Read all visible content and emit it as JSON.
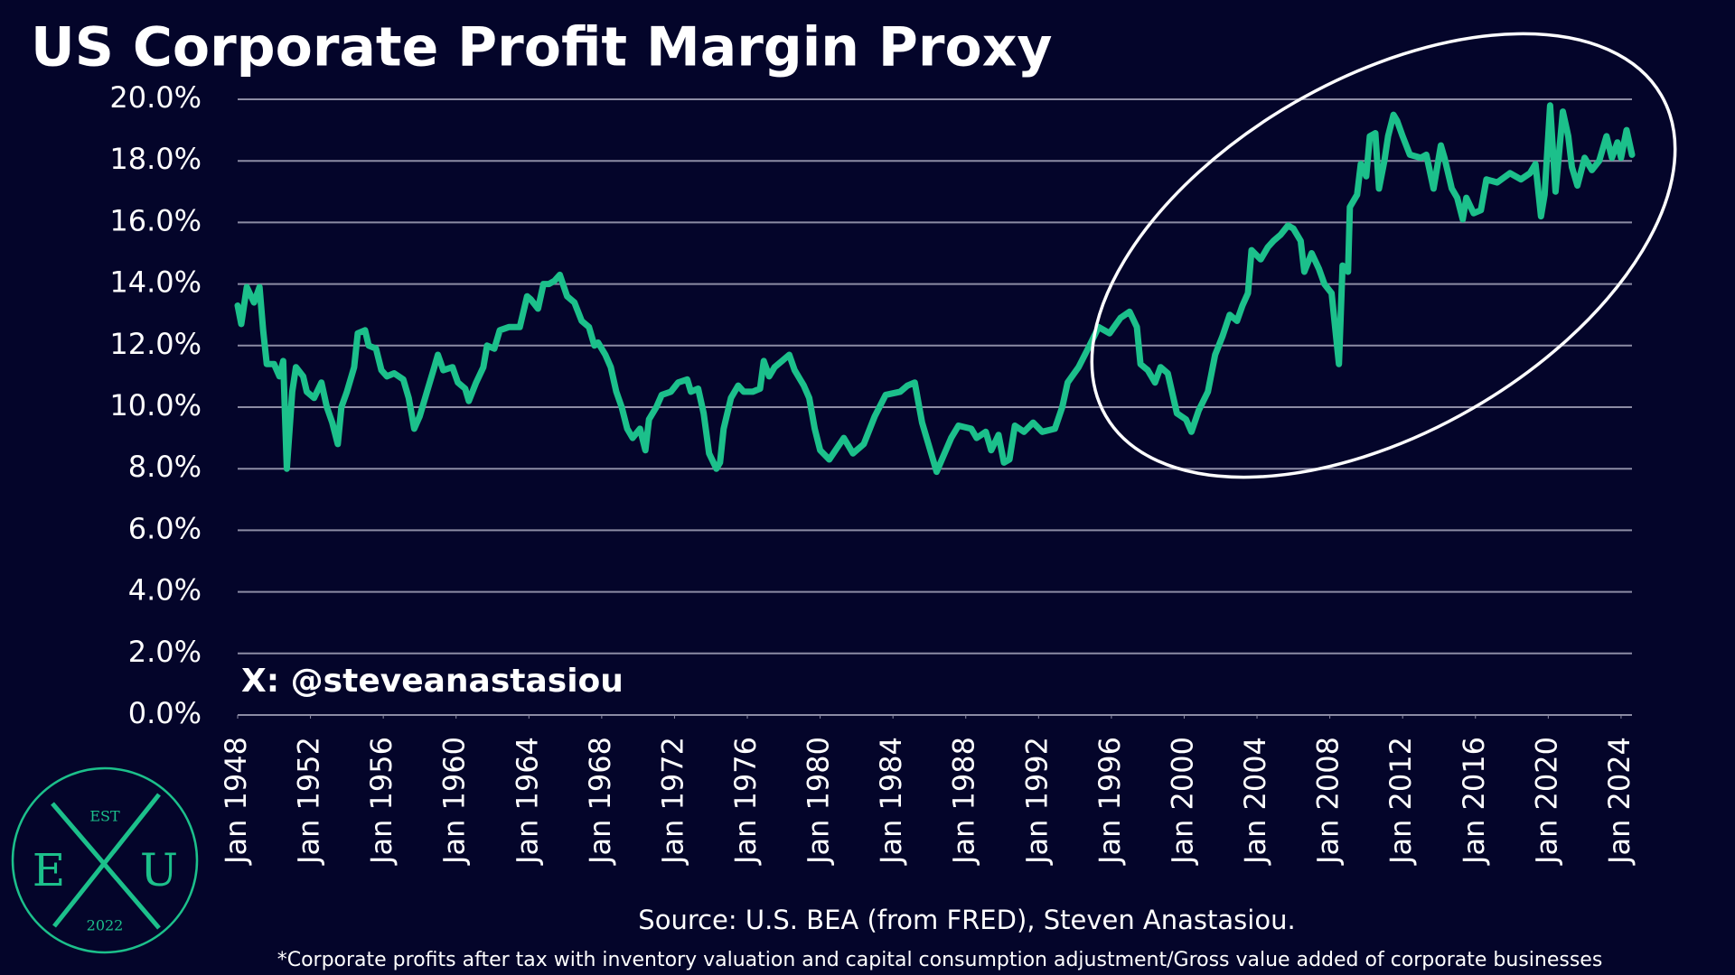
{
  "chart_data": {
    "type": "line",
    "title": "US Corporate Profit Margin Proxy",
    "watermark": "X: @steveanastasiou",
    "source": "Source: U.S. BEA (from FRED), Steven Anastasiou.",
    "footnote": "*Corporate profits after tax with inventory valuation and capital consumption adjustment/Gross value added of corporate businesses",
    "logo": {
      "top": "EST",
      "left": "E",
      "right": "U",
      "bottom": "2022"
    },
    "xlim": [
      1948,
      2024.6
    ],
    "ylim": [
      0,
      20
    ],
    "grid": true,
    "xticks": [
      {
        "value": 1948,
        "label": "Jan 1948"
      },
      {
        "value": 1952,
        "label": "Jan 1952"
      },
      {
        "value": 1956,
        "label": "Jan 1956"
      },
      {
        "value": 1960,
        "label": "Jan 1960"
      },
      {
        "value": 1964,
        "label": "Jan 1964"
      },
      {
        "value": 1968,
        "label": "Jan 1968"
      },
      {
        "value": 1972,
        "label": "Jan 1972"
      },
      {
        "value": 1976,
        "label": "Jan 1976"
      },
      {
        "value": 1980,
        "label": "Jan 1980"
      },
      {
        "value": 1984,
        "label": "Jan 1984"
      },
      {
        "value": 1988,
        "label": "Jan 1988"
      },
      {
        "value": 1992,
        "label": "Jan 1992"
      },
      {
        "value": 1996,
        "label": "Jan 1996"
      },
      {
        "value": 2000,
        "label": "Jan 2000"
      },
      {
        "value": 2004,
        "label": "Jan 2004"
      },
      {
        "value": 2008,
        "label": "Jan 2008"
      },
      {
        "value": 2012,
        "label": "Jan 2012"
      },
      {
        "value": 2016,
        "label": "Jan 2016"
      },
      {
        "value": 2020,
        "label": "Jan 2020"
      },
      {
        "value": 2024,
        "label": "Jan 2024"
      }
    ],
    "yticks": [
      {
        "value": 0,
        "label": "0.0%"
      },
      {
        "value": 2,
        "label": "2.0%"
      },
      {
        "value": 4,
        "label": "4.0%"
      },
      {
        "value": 6,
        "label": "6.0%"
      },
      {
        "value": 8,
        "label": "8.0%"
      },
      {
        "value": 10,
        "label": "10.0%"
      },
      {
        "value": 12,
        "label": "12.0%"
      },
      {
        "value": 14,
        "label": "14.0%"
      },
      {
        "value": 16,
        "label": "16.0%"
      },
      {
        "value": 18,
        "label": "18.0%"
      },
      {
        "value": 20,
        "label": "20.0%"
      }
    ],
    "series": [
      {
        "color": "#1cc08b",
        "x": [
          1948.0,
          1948.2,
          1948.5,
          1948.9,
          1949.2,
          1949.4,
          1949.6,
          1950.0,
          1950.3,
          1950.5,
          1950.7,
          1951.0,
          1951.2,
          1951.6,
          1951.8,
          1952.2,
          1952.6,
          1952.9,
          1953.2,
          1953.5,
          1953.7,
          1954.0,
          1954.4,
          1954.6,
          1955.0,
          1955.2,
          1955.6,
          1955.9,
          1956.2,
          1956.6,
          1957.1,
          1957.4,
          1957.7,
          1958.0,
          1958.4,
          1958.8,
          1959.0,
          1959.3,
          1959.8,
          1960.1,
          1960.5,
          1960.7,
          1961.1,
          1961.5,
          1961.7,
          1962.1,
          1962.4,
          1962.9,
          1963.5,
          1963.9,
          1964.1,
          1964.5,
          1964.8,
          1965.1,
          1965.4,
          1965.7,
          1966.1,
          1966.5,
          1966.9,
          1967.3,
          1967.6,
          1967.8,
          1968.2,
          1968.5,
          1968.8,
          1969.1,
          1969.4,
          1969.7,
          1970.1,
          1970.4,
          1970.6,
          1971.0,
          1971.3,
          1971.8,
          1972.2,
          1972.7,
          1972.9,
          1973.3,
          1973.6,
          1973.9,
          1974.3,
          1974.5,
          1974.7,
          1975.1,
          1975.5,
          1975.8,
          1976.3,
          1976.7,
          1976.9,
          1977.2,
          1977.5,
          1977.9,
          1978.3,
          1978.6,
          1979.1,
          1979.4,
          1979.7,
          1980.0,
          1980.5,
          1981.3,
          1981.8,
          1982.4,
          1983.0,
          1983.6,
          1984.4,
          1984.8,
          1985.2,
          1985.6,
          1986.1,
          1986.4,
          1987.2,
          1987.6,
          1988.3,
          1988.6,
          1989.1,
          1989.4,
          1989.8,
          1990.1,
          1990.4,
          1990.7,
          1991.2,
          1991.7,
          1992.2,
          1992.9,
          1993.3,
          1993.6,
          1994.2,
          1994.8,
          1995.3,
          1995.9,
          1996.5,
          1997.0,
          1997.4,
          1997.6,
          1998.0,
          1998.4,
          1998.7,
          1999.1,
          1999.6,
          2000.1,
          2000.4,
          2000.8,
          2001.3,
          2001.7,
          2002.1,
          2002.5,
          2002.9,
          2003.2,
          2003.5,
          2003.7,
          2004.2,
          2004.6,
          2004.9,
          2005.3,
          2005.7,
          2006.0,
          2006.4,
          2006.6,
          2007.0,
          2007.4,
          2007.7,
          2008.1,
          2008.5,
          2008.7,
          2009.0,
          2009.1,
          2009.5,
          2009.7,
          2010.0,
          2010.2,
          2010.5,
          2010.7,
          2011.0,
          2011.2,
          2011.5,
          2011.7,
          2012.0,
          2012.4,
          2013.0,
          2013.3,
          2013.7,
          2014.1,
          2014.3,
          2014.7,
          2015.0,
          2015.3,
          2015.5,
          2015.9,
          2016.3,
          2016.6,
          2017.2,
          2017.9,
          2018.5,
          2019.0,
          2019.3,
          2019.6,
          2019.8,
          2020.1,
          2020.4,
          2020.8,
          2021.1,
          2021.3,
          2021.6,
          2022.0,
          2022.4,
          2022.8,
          2023.2,
          2023.5,
          2023.8,
          2024.0,
          2024.3,
          2024.6
        ],
        "values": [
          13.3,
          12.7,
          13.9,
          13.4,
          13.9,
          12.5,
          11.4,
          11.4,
          11.0,
          11.5,
          8.0,
          10.5,
          11.3,
          11.0,
          10.5,
          10.3,
          10.8,
          10.0,
          9.5,
          8.8,
          10.0,
          10.5,
          11.3,
          12.4,
          12.5,
          12.0,
          11.9,
          11.2,
          11.0,
          11.1,
          10.9,
          10.3,
          9.3,
          9.7,
          10.5,
          11.3,
          11.7,
          11.2,
          11.3,
          10.8,
          10.6,
          10.2,
          10.8,
          11.3,
          12.0,
          11.9,
          12.5,
          12.6,
          12.6,
          13.6,
          13.5,
          13.2,
          14.0,
          14.0,
          14.1,
          14.3,
          13.6,
          13.4,
          12.8,
          12.6,
          12.0,
          12.1,
          11.7,
          11.3,
          10.5,
          10.0,
          9.3,
          9.0,
          9.3,
          8.6,
          9.6,
          10.0,
          10.4,
          10.5,
          10.8,
          10.9,
          10.5,
          10.6,
          9.8,
          8.5,
          8.0,
          8.2,
          9.3,
          10.3,
          10.7,
          10.5,
          10.5,
          10.6,
          11.5,
          11.0,
          11.3,
          11.5,
          11.7,
          11.2,
          10.7,
          10.3,
          9.3,
          8.6,
          8.3,
          9.0,
          8.5,
          8.8,
          9.7,
          10.4,
          10.5,
          10.7,
          10.8,
          9.5,
          8.5,
          7.9,
          9.0,
          9.4,
          9.3,
          9.0,
          9.2,
          8.6,
          9.1,
          8.2,
          8.3,
          9.4,
          9.2,
          9.5,
          9.2,
          9.3,
          10.0,
          10.8,
          11.3,
          12.0,
          12.6,
          12.4,
          12.9,
          13.1,
          12.6,
          11.4,
          11.2,
          10.8,
          11.3,
          11.1,
          9.8,
          9.6,
          9.2,
          9.9,
          10.5,
          11.7,
          12.3,
          13.0,
          12.8,
          13.3,
          13.7,
          15.1,
          14.8,
          15.2,
          15.4,
          15.6,
          15.9,
          15.8,
          15.4,
          14.4,
          15.0,
          14.5,
          14.0,
          13.7,
          11.4,
          14.6,
          14.4,
          16.5,
          16.9,
          17.9,
          17.5,
          18.8,
          18.9,
          17.1,
          18.0,
          18.8,
          19.5,
          19.3,
          18.8,
          18.2,
          18.1,
          18.2,
          17.1,
          18.5,
          18.1,
          17.1,
          16.8,
          16.1,
          16.8,
          16.3,
          16.4,
          17.4,
          17.3,
          17.6,
          17.4,
          17.6,
          17.9,
          16.2,
          16.9,
          19.8,
          17.0,
          19.6,
          18.8,
          17.8,
          17.2,
          18.1,
          17.7,
          18.0,
          18.8,
          18.1,
          18.6,
          18.1,
          19.0,
          18.2
        ]
      }
    ]
  }
}
